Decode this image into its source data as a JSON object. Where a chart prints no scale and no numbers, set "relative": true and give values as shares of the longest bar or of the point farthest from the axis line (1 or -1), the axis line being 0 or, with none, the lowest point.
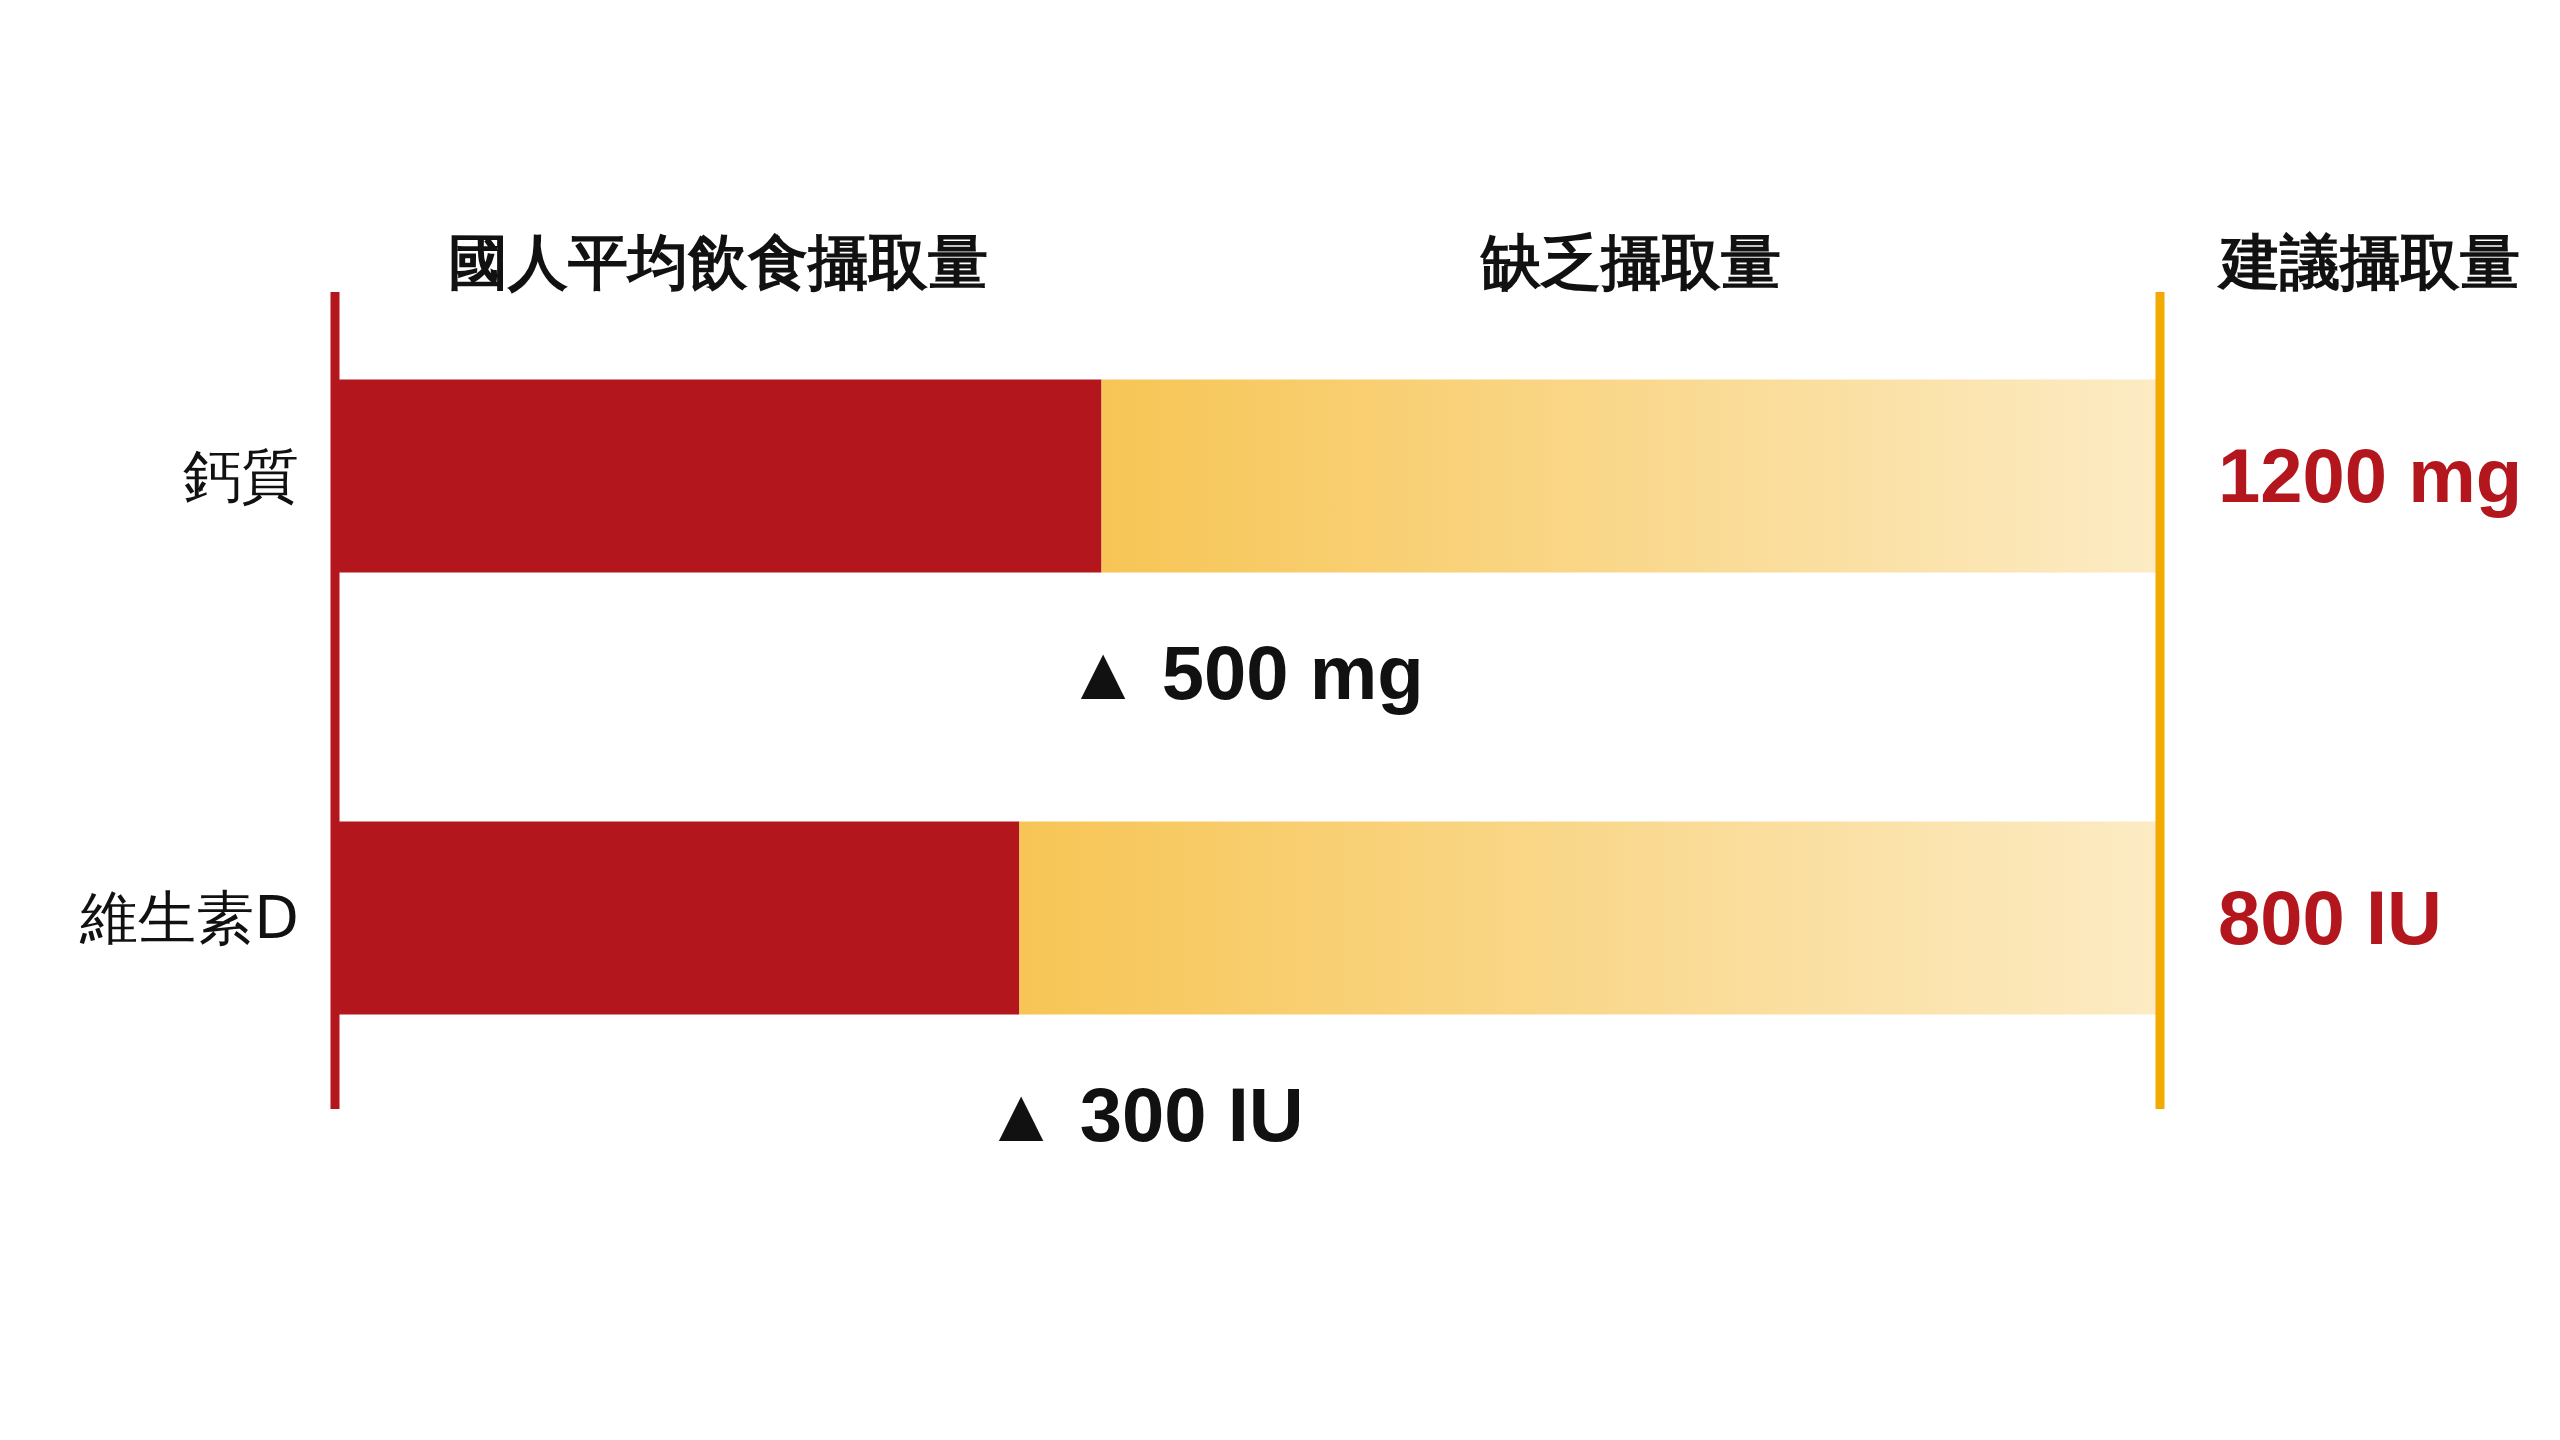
{
  "chart_data": {
    "type": "bar",
    "orientation": "horizontal",
    "stacked": true,
    "relative": true,
    "legend": "top",
    "categories": [
      "鈣質",
      "維生素D"
    ],
    "series": [
      {
        "name": "國人平均飲食攝取量",
        "color": "#b3161c",
        "values": [
          0.42,
          0.375
        ]
      },
      {
        "name": "缺乏攝取量",
        "color": "#f7c555",
        "values": [
          0.58,
          0.625
        ]
      }
    ],
    "ref_lines": [
      {
        "axis": "x",
        "value": 1,
        "label": "建議攝取量",
        "color": "#f2a900"
      }
    ],
    "annotations": [
      "▲ 500 mg",
      "▲ 300 IU",
      "1200 mg",
      "800 IU"
    ]
  }
}
